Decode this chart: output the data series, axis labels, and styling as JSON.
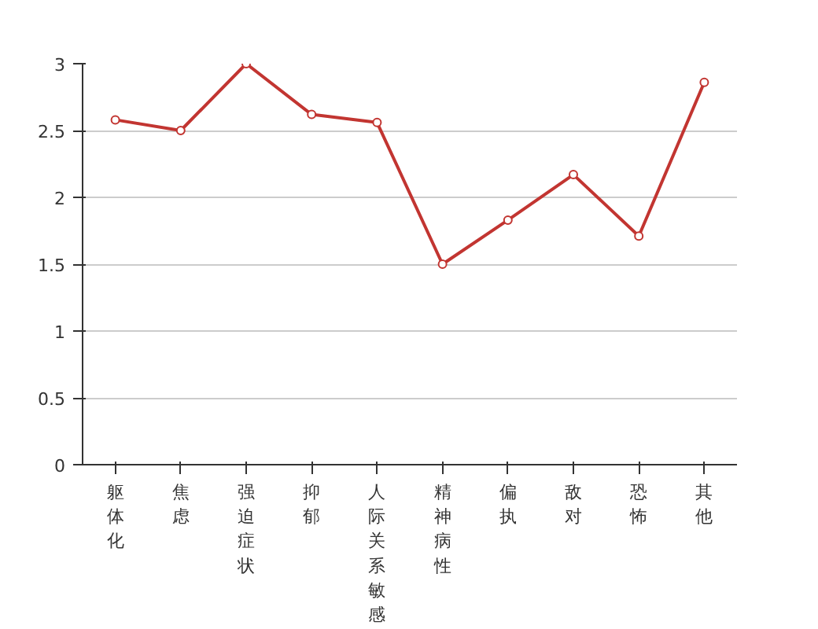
{
  "chart_data": {
    "type": "line",
    "categories": [
      "躯体化",
      "焦虑",
      "强迫症状",
      "抑郁",
      "人际关系敏感",
      "精神病性",
      "偏执",
      "敌对",
      "恐怖",
      "其他"
    ],
    "series": [
      {
        "color": "#c23531",
        "values": [
          2.58,
          2.5,
          3.0,
          2.62,
          2.56,
          1.5,
          1.83,
          2.17,
          1.71,
          2.86
        ]
      }
    ],
    "ylim": [
      0,
      3
    ],
    "yticks": [
      0,
      0.5,
      1,
      1.5,
      2,
      2.5,
      3
    ],
    "grid": "y",
    "marker": "circle",
    "line_style": "solid"
  }
}
